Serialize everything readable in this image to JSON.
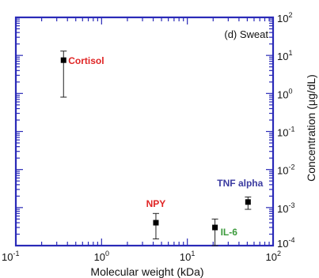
{
  "chart_data": {
    "type": "scatter",
    "panel_label": "(d) Sweat",
    "xlabel": "Molecular weight (kDa)",
    "ylabel": "Concentration (μg/dL)",
    "x_scale": "log",
    "y_scale": "log",
    "xlim": [
      0.1,
      100
    ],
    "ylim": [
      0.0001,
      100
    ],
    "grid": false,
    "x_tick_labels": [
      {
        "base": "10",
        "exp": "-1",
        "value": 0.1
      },
      {
        "base": "10",
        "exp": "0",
        "value": 1
      },
      {
        "base": "10",
        "exp": "1",
        "value": 10
      },
      {
        "base": "10",
        "exp": "2",
        "value": 100
      }
    ],
    "y_tick_labels": [
      {
        "base": "10",
        "exp": "2",
        "value": 100
      },
      {
        "base": "10",
        "exp": "1",
        "value": 10
      },
      {
        "base": "10",
        "exp": "0",
        "value": 1
      },
      {
        "base": "10",
        "exp": "-1",
        "value": 0.1
      },
      {
        "base": "10",
        "exp": "-2",
        "value": 0.01
      },
      {
        "base": "10",
        "exp": "-3",
        "value": 0.001
      },
      {
        "base": "10",
        "exp": "-4",
        "value": 0.0001
      }
    ],
    "points": [
      {
        "label": "Cortisol",
        "x": 0.36,
        "y": 7.5,
        "y_low": 0.8,
        "y_high": 13,
        "label_color": "#e02424"
      },
      {
        "label": "NPY",
        "x": 4.3,
        "y": 0.0004,
        "y_low": 0.00015,
        "y_high": 0.0007,
        "label_color": "#e02424"
      },
      {
        "label": "IL-6",
        "x": 21,
        "y": 0.0003,
        "y_low": 0.0001,
        "y_high": 0.0005,
        "label_color": "#3a9a3a"
      },
      {
        "label": "TNF alpha",
        "x": 51,
        "y": 0.0014,
        "y_low": 0.0009,
        "y_high": 0.0019,
        "label_color": "#3a3aa0"
      }
    ],
    "frame_color": "#2a2ab8"
  }
}
